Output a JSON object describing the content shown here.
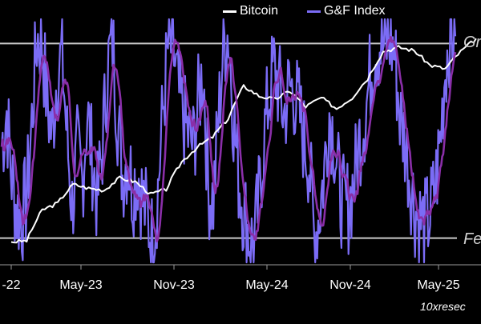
{
  "chart_data": {
    "type": "line",
    "title": "",
    "legend": [
      "Bitcoin",
      "G&F Index"
    ],
    "legend_position": "top-center",
    "x_ticks": [
      "-22",
      "May-23",
      "Nov-23",
      "May-24",
      "Nov-24",
      "May-25"
    ],
    "reference_lines": [
      {
        "label": "Gr",
        "level": 0.9
      },
      {
        "label": "Fe",
        "level": 0.1
      }
    ],
    "series": [
      {
        "name": "Bitcoin",
        "color": "#ffffff",
        "points": [
          [
            "2022-12",
            16800
          ],
          [
            "2023-01",
            17000
          ],
          [
            "2023-02",
            22500
          ],
          [
            "2023-03",
            24000
          ],
          [
            "2023-04",
            28500
          ],
          [
            "2023-05",
            27500
          ],
          [
            "2023-06",
            27000
          ],
          [
            "2023-07",
            30200
          ],
          [
            "2023-08",
            29200
          ],
          [
            "2023-09",
            26000
          ],
          [
            "2023-10",
            27200
          ],
          [
            "2023-11",
            35000
          ],
          [
            "2023-12",
            40000
          ],
          [
            "2024-01",
            44000
          ],
          [
            "2024-02",
            52000
          ],
          [
            "2024-03",
            70000
          ],
          [
            "2024-04",
            64000
          ],
          [
            "2024-05",
            62000
          ],
          [
            "2024-06",
            67000
          ],
          [
            "2024-07",
            58000
          ],
          [
            "2024-08",
            63000
          ],
          [
            "2024-09",
            57000
          ],
          [
            "2024-10",
            63000
          ],
          [
            "2024-11",
            75000
          ],
          [
            "2024-12",
            96000
          ],
          [
            "2025-01",
            100000
          ],
          [
            "2025-02",
            97000
          ],
          [
            "2025-03",
            85000
          ],
          [
            "2025-04",
            82000
          ],
          [
            "2025-05",
            96000
          ],
          [
            "2025-06",
            108000
          ]
        ]
      },
      {
        "name": "G&F Index",
        "colors": {
          "daily": "#7b6cf6",
          "smoothed": "#8a2ea8"
        },
        "values_0_to_1": [
          0.48,
          0.62,
          0.35,
          0.21,
          0.18,
          0.27,
          0.58,
          0.92,
          0.92,
          0.66,
          0.52,
          0.78,
          0.85,
          0.5,
          0.23,
          0.45,
          0.33,
          0.62,
          0.42,
          0.25,
          0.48,
          0.8,
          0.92,
          0.6,
          0.36,
          0.44,
          0.3,
          0.38,
          0.25,
          0.18,
          0.08,
          0.3,
          0.62,
          0.88,
          0.88,
          0.7,
          0.6,
          0.52,
          0.48,
          0.65,
          0.8,
          0.3,
          0.25,
          0.58,
          0.9,
          0.95,
          0.6,
          0.35,
          0.22,
          0.12,
          0.06,
          0.25,
          0.5,
          0.68,
          0.8,
          0.72,
          0.6,
          0.72,
          0.7,
          0.62,
          0.5,
          0.42,
          0.1,
          0.2,
          0.38,
          0.62,
          0.5,
          0.3,
          0.22,
          0.24,
          0.35,
          0.5,
          0.6,
          0.75,
          0.88,
          0.9,
          0.88,
          0.92,
          0.85,
          0.6,
          0.5,
          0.35,
          0.22,
          0.17,
          0.15,
          0.2,
          0.3,
          0.5,
          0.8,
          0.96,
          0.93
        ]
      }
    ]
  },
  "source_label": "10xresec",
  "background": "#000000"
}
